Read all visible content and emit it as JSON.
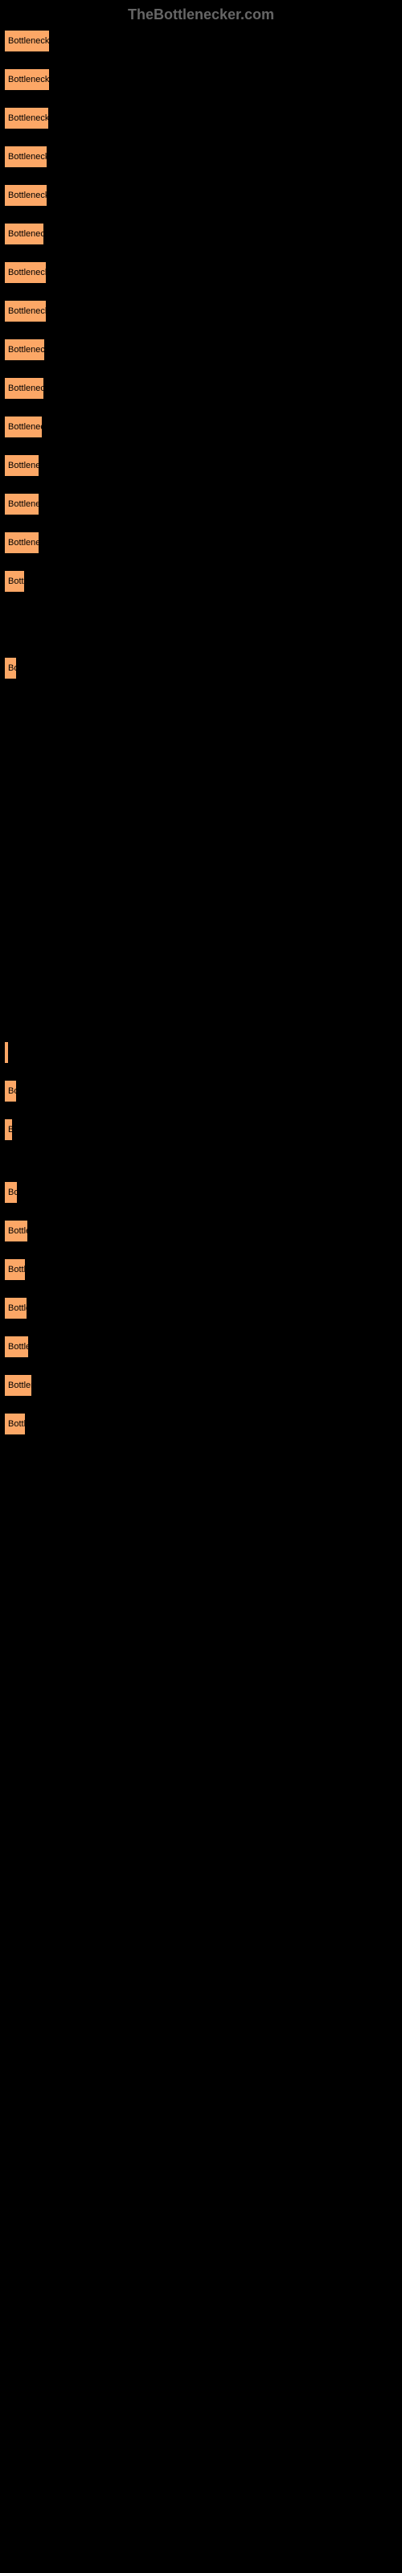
{
  "watermark": "TheBottlenecker.com",
  "chart": {
    "type": "bar",
    "bar_color": "#fca766",
    "background_color": "#000000",
    "text_color": "#000000",
    "border_color": "#000000",
    "bars": [
      {
        "label": "Bottleneck re",
        "width": 57,
        "gap_after": 20
      },
      {
        "label": "Bottleneck re",
        "width": 57,
        "gap_after": 20
      },
      {
        "label": "Bottleneck re",
        "width": 56,
        "gap_after": 20
      },
      {
        "label": "Bottleneck r",
        "width": 54,
        "gap_after": 20
      },
      {
        "label": "Bottleneck r",
        "width": 54,
        "gap_after": 20
      },
      {
        "label": "Bottleneck",
        "width": 50,
        "gap_after": 20
      },
      {
        "label": "Bottleneck r",
        "width": 53,
        "gap_after": 20
      },
      {
        "label": "Bottleneck r",
        "width": 53,
        "gap_after": 20
      },
      {
        "label": "Bottleneck",
        "width": 51,
        "gap_after": 20
      },
      {
        "label": "Bottleneck",
        "width": 50,
        "gap_after": 20
      },
      {
        "label": "Bottleneck",
        "width": 48,
        "gap_after": 20
      },
      {
        "label": "Bottlenec",
        "width": 44,
        "gap_after": 20
      },
      {
        "label": "Bottlenec",
        "width": 44,
        "gap_after": 20
      },
      {
        "label": "Bottlenec",
        "width": 44,
        "gap_after": 20
      },
      {
        "label": "Bottl",
        "width": 26,
        "gap_after": 80
      },
      {
        "label": "Bo",
        "width": 16,
        "gap_after": 450
      },
      {
        "label": "",
        "width": 6,
        "gap_after": 20
      },
      {
        "label": "Bo",
        "width": 16,
        "gap_after": 20
      },
      {
        "label": "B",
        "width": 11,
        "gap_after": 50
      },
      {
        "label": "Bo",
        "width": 17,
        "gap_after": 20
      },
      {
        "label": "Bottle",
        "width": 30,
        "gap_after": 20
      },
      {
        "label": "Bottl",
        "width": 27,
        "gap_after": 20
      },
      {
        "label": "Bottle",
        "width": 29,
        "gap_after": 20
      },
      {
        "label": "Bottle",
        "width": 31,
        "gap_after": 20
      },
      {
        "label": "Bottlen",
        "width": 35,
        "gap_after": 20
      },
      {
        "label": "Bottl",
        "width": 27,
        "gap_after": 20
      }
    ]
  }
}
